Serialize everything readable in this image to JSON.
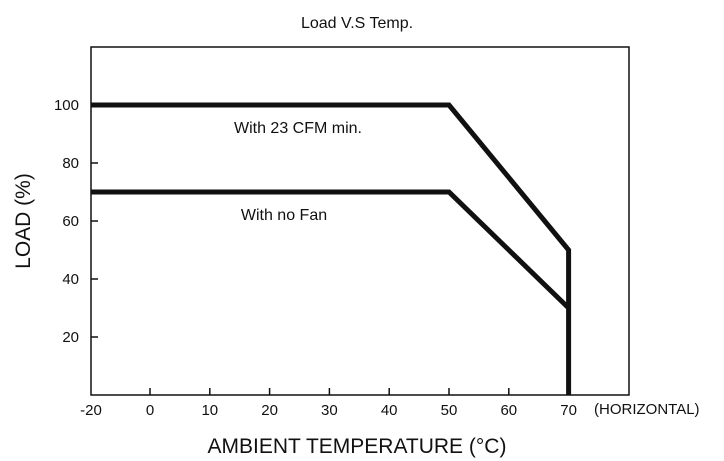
{
  "chart_data": {
    "type": "line",
    "title": "Load V.S Temp.",
    "xlabel": "AMBIENT TEMPERATURE (°C)",
    "ylabel": "LOAD (%)",
    "x_suffix": "(HORIZONTAL)",
    "xlim": [
      -20,
      80
    ],
    "ylim": [
      0,
      120
    ],
    "x_ticks": [
      -20,
      0,
      10,
      20,
      30,
      40,
      50,
      60,
      70
    ],
    "y_ticks": [
      20,
      40,
      60,
      80,
      100
    ],
    "grid": false,
    "series": [
      {
        "name": "With 23 CFM min.",
        "x": [
          -20,
          50,
          70,
          70
        ],
        "y": [
          100,
          100,
          50,
          0
        ]
      },
      {
        "name": "With no Fan",
        "x": [
          -20,
          50,
          70
        ],
        "y": [
          70,
          70,
          30
        ]
      }
    ],
    "line_color": "#111111"
  }
}
